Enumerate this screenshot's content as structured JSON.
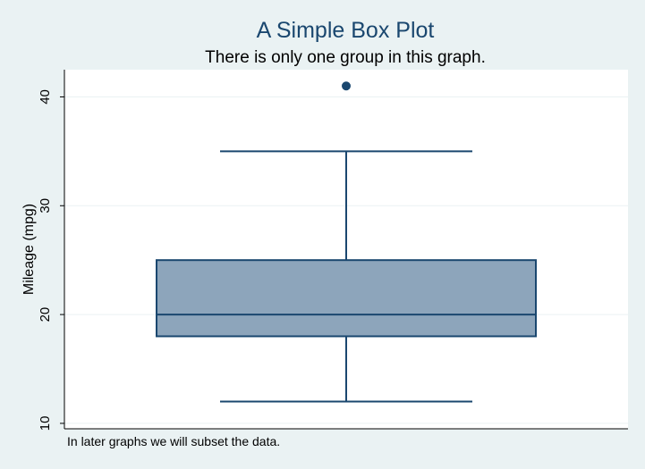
{
  "chart_data": {
    "type": "box",
    "title": "A Simple Box Plot",
    "subtitle": "There is only one group in this graph.",
    "ylabel": "Mileage (mpg)",
    "xlabel": "",
    "ylim": [
      9.5,
      42.5
    ],
    "yticks": [
      10,
      20,
      30,
      40
    ],
    "grid": true,
    "note": "In later graphs we will subset the data.",
    "box": {
      "min_whisker": 12,
      "q1": 18,
      "median": 20,
      "q3": 25,
      "max_whisker": 35,
      "outliers": [
        41
      ]
    },
    "colors": {
      "background": "#eaf2f3",
      "plot_area": "#ffffff",
      "box_fill": "#8da5bb",
      "box_stroke": "#1a476f",
      "whisker": "#1a476f",
      "outlier": "#1a476f",
      "title": "#1a476f",
      "grid": "#eaf2f3"
    }
  }
}
